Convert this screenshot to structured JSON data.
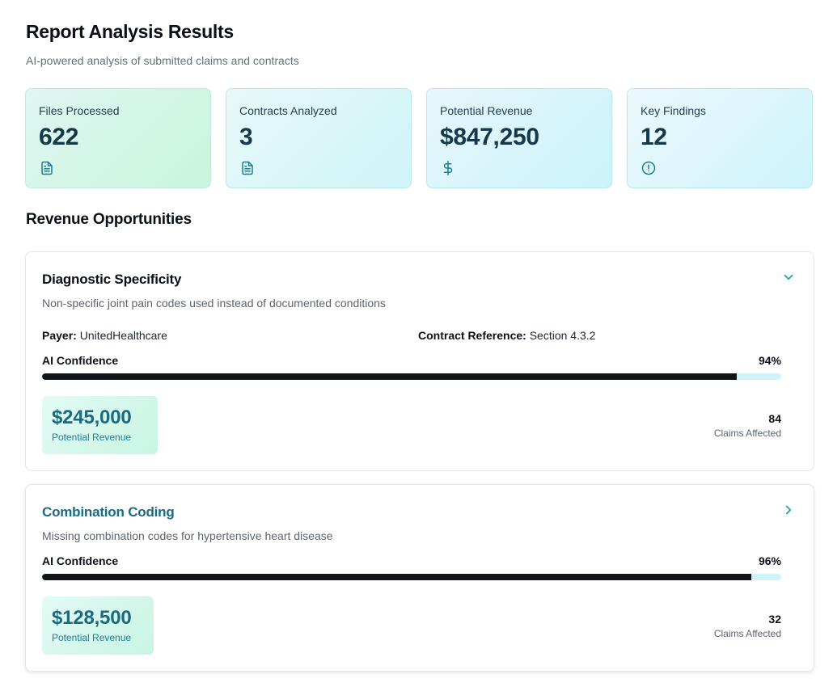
{
  "page": {
    "title": "Report Analysis Results",
    "subtitle": "AI-powered analysis of submitted claims and contracts"
  },
  "stats": [
    {
      "label": "Files Processed",
      "value": "622",
      "icon": "document-icon"
    },
    {
      "label": "Contracts Analyzed",
      "value": "3",
      "icon": "document-icon"
    },
    {
      "label": "Potential Revenue",
      "value": "$847,250",
      "icon": "dollar-icon"
    },
    {
      "label": "Key Findings",
      "value": "12",
      "icon": "alert-circle-icon"
    }
  ],
  "section": {
    "title": "Revenue Opportunities"
  },
  "opportunities": [
    {
      "title": "Diagnostic Specificity",
      "description": "Non-specific joint pain codes used instead of documented conditions",
      "expanded": true,
      "payer_label": "Payer:",
      "payer": "UnitedHealthcare",
      "contract_label": "Contract Reference:",
      "contract": "Section 4.3.2",
      "confidence_label": "AI Confidence",
      "confidence": "94%",
      "confidence_value": 0.94,
      "revenue": "$245,000",
      "revenue_label": "Potential Revenue",
      "claims": "84",
      "claims_label": "Claims Affected"
    },
    {
      "title": "Combination Coding",
      "description": "Missing combination codes for hypertensive heart disease",
      "expanded": false,
      "confidence_label": "AI Confidence",
      "confidence": "96%",
      "confidence_value": 0.96,
      "revenue": "$128,500",
      "revenue_label": "Potential Revenue",
      "claims": "32",
      "claims_label": "Claims Affected"
    }
  ],
  "colors": {
    "accent": "#1a6a80",
    "bar_fill": "#111418",
    "bar_track": "#cff4f8"
  }
}
